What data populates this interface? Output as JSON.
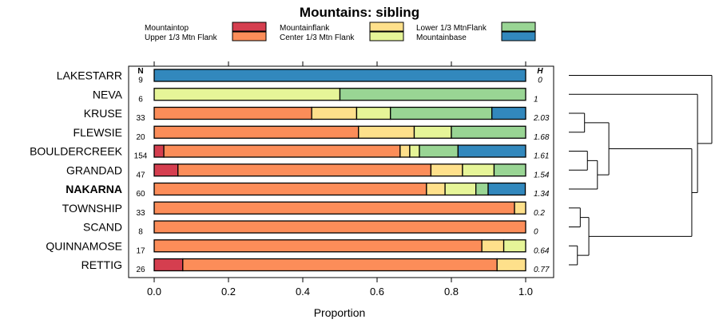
{
  "chart_data": {
    "type": "stacked-bar",
    "title": "Mountains: sibling",
    "xlabel": "Proportion",
    "xlim": [
      0,
      1
    ],
    "xticks": [
      "0.0",
      "0.2",
      "0.4",
      "0.6",
      "0.8",
      "1.0"
    ],
    "col_headers": {
      "n": "N",
      "h": "H"
    },
    "legend": [
      {
        "name": "Mountaintop",
        "color": "#d53e4f"
      },
      {
        "name": "Upper 1/3 Mtn Flank",
        "color": "#fc8d59"
      },
      {
        "name": "Mountainflank",
        "color": "#fee08b"
      },
      {
        "name": "Center 1/3 Mtn Flank",
        "color": "#e6f598"
      },
      {
        "name": "Lower 1/3 MtnFlank",
        "color": "#99d594"
      },
      {
        "name": "Mountainbase",
        "color": "#3288bd"
      }
    ],
    "rows": [
      {
        "label": "LAKESTARR",
        "n": "9",
        "h": "0",
        "bold": false,
        "values": [
          0,
          0,
          0,
          0,
          0,
          1.0
        ]
      },
      {
        "label": "NEVA",
        "n": "6",
        "h": "1",
        "bold": false,
        "values": [
          0,
          0,
          0,
          0.5,
          0.5,
          0
        ]
      },
      {
        "label": "KRUSE",
        "n": "33",
        "h": "2.03",
        "bold": false,
        "values": [
          0,
          0.424,
          0.121,
          0.091,
          0.273,
          0.091
        ]
      },
      {
        "label": "FLEWSIE",
        "n": "20",
        "h": "1.68",
        "bold": false,
        "values": [
          0,
          0.55,
          0.15,
          0.1,
          0.2,
          0
        ]
      },
      {
        "label": "BOULDERCREEK",
        "n": "154",
        "h": "1.61",
        "bold": false,
        "values": [
          0.026,
          0.636,
          0.026,
          0.026,
          0.104,
          0.182
        ]
      },
      {
        "label": "GRANDAD",
        "n": "47",
        "h": "1.54",
        "bold": false,
        "values": [
          0.064,
          0.681,
          0.085,
          0.085,
          0.085,
          0
        ]
      },
      {
        "label": "NAKARNA",
        "n": "60",
        "h": "1.34",
        "bold": true,
        "values": [
          0,
          0.733,
          0.05,
          0.083,
          0.033,
          0.1
        ]
      },
      {
        "label": "TOWNSHIP",
        "n": "33",
        "h": "0.2",
        "bold": false,
        "values": [
          0,
          0.97,
          0.03,
          0,
          0,
          0
        ]
      },
      {
        "label": "SCAND",
        "n": "8",
        "h": "0",
        "bold": false,
        "values": [
          0,
          1.0,
          0,
          0,
          0,
          0
        ]
      },
      {
        "label": "QUINNAMOSE",
        "n": "17",
        "h": "0.64",
        "bold": false,
        "values": [
          0,
          0.882,
          0.059,
          0.059,
          0,
          0
        ]
      },
      {
        "label": "RETTIG",
        "n": "26",
        "h": "0.77",
        "bold": false,
        "values": [
          0.077,
          0.846,
          0.077,
          0,
          0,
          0
        ]
      }
    ],
    "dendrogram": {
      "leaves": [
        "LAKESTARR",
        "NEVA",
        "KRUSE",
        "FLEWSIE",
        "BOULDERCREEK",
        "GRANDAD",
        "NAKARNA",
        "TOWNSHIP",
        "SCAND",
        "QUINNAMOSE",
        "RETTIG"
      ],
      "merges": [
        {
          "a": "L9",
          "b": "L10",
          "height": 0.06
        },
        {
          "a": "L7",
          "b": "L8",
          "height": 0.08
        },
        {
          "a": "N0",
          "b": "N1",
          "height": 0.14
        },
        {
          "a": "L4",
          "b": "L5",
          "height": 0.13
        },
        {
          "a": "L2",
          "b": "L3",
          "height": 0.11
        },
        {
          "a": "L6",
          "b": "N3",
          "height": 0.2
        },
        {
          "a": "N4",
          "b": "N5",
          "height": 0.28
        },
        {
          "a": "N6",
          "b": "N2",
          "height": 0.86
        },
        {
          "a": "L1",
          "b": "N7",
          "height": 0.9
        },
        {
          "a": "L0",
          "b": "N8",
          "height": 1.0
        }
      ]
    }
  }
}
